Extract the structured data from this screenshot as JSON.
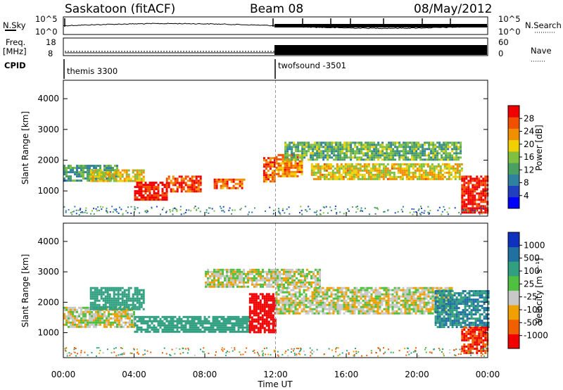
{
  "header": {
    "station": "Saskatoon (fitACF)",
    "beam": "Beam 08",
    "date": "08/May/2012"
  },
  "top_panels": {
    "nsky_label": "N.Sky",
    "nsky_ticks": [
      "10^5",
      "10^0"
    ],
    "nsearch_label": "N.Search",
    "nsearch_ticks": [
      "10^5",
      "10^0"
    ],
    "freq_label": "Freq.",
    "freq_unit": "[MHz]",
    "freq_ticks": [
      "18",
      "8"
    ],
    "nave_label": "Nave",
    "nave_ticks": [
      "60",
      "0"
    ],
    "cpid_label": "CPID",
    "cpid_segments": [
      {
        "name": "themis 3300",
        "start_hour": 0
      },
      {
        "name": "twofsound -3501",
        "start_hour": 12
      }
    ]
  },
  "power_colorbar": {
    "label": "Power [dB]",
    "ticks": [
      "28",
      "24",
      "20",
      "16",
      "12",
      "8",
      "4"
    ],
    "colors": [
      "#0000ff",
      "#2040c0",
      "#3080a0",
      "#4aa060",
      "#80c040",
      "#f0d000",
      "#f09000",
      "#f05000",
      "#f00000"
    ]
  },
  "velocity_colorbar": {
    "label": "Velocity [m s⁻¹]",
    "ticks": [
      "1000",
      "500",
      "100",
      "25",
      "-25",
      "-100",
      "-500",
      "-1000"
    ],
    "colors": [
      "#1030c0",
      "#2070a0",
      "#30a080",
      "#50c040",
      "#c8c8c8",
      "#f0a000",
      "#f06000",
      "#f00000"
    ]
  },
  "x_axis": {
    "label": "Time UT",
    "ticks": [
      "00:00",
      "04:00",
      "08:00",
      "12:00",
      "16:00",
      "20:00",
      "00:00"
    ]
  },
  "y_axis": {
    "label": "Slant Range [km]",
    "ticks": [
      "4000",
      "3000",
      "2000",
      "1000"
    ]
  },
  "chart_data": [
    {
      "type": "heatmap",
      "title": "Power",
      "ylabel": "Slant Range [km]",
      "xlabel": "",
      "x_range_hours": [
        0,
        24
      ],
      "ylim": [
        180,
        4600
      ],
      "value_range_db": [
        0,
        32
      ],
      "bands": [
        {
          "t0": 0,
          "t1": 3,
          "r0": 1350,
          "r1": 1850,
          "value": 12
        },
        {
          "t0": 1.5,
          "t1": 4.5,
          "r0": 1300,
          "r1": 1700,
          "value": 20
        },
        {
          "t0": 4.0,
          "t1": 5.8,
          "r0": 700,
          "r1": 1300,
          "value": 30
        },
        {
          "t0": 5.8,
          "t1": 7.8,
          "r0": 1000,
          "r1": 1500,
          "value": 28
        },
        {
          "t0": 8.5,
          "t1": 10.2,
          "r0": 1100,
          "r1": 1400,
          "value": 26
        },
        {
          "t0": 11.3,
          "t1": 12.0,
          "r0": 1300,
          "r1": 2100,
          "value": 26
        },
        {
          "t0": 12.0,
          "t1": 13.5,
          "r0": 1500,
          "r1": 2200,
          "value": 24
        },
        {
          "t0": 12.5,
          "t1": 22.5,
          "r0": 2000,
          "r1": 2600,
          "value": 14
        },
        {
          "t0": 14.0,
          "t1": 22.5,
          "r0": 1400,
          "r1": 1900,
          "value": 20
        },
        {
          "t0": 22.5,
          "t1": 24.0,
          "r0": 300,
          "r1": 1500,
          "value": 30
        }
      ]
    },
    {
      "type": "heatmap",
      "title": "Velocity",
      "ylabel": "Slant Range [km]",
      "xlabel": "Time UT",
      "x_range_hours": [
        0,
        24
      ],
      "ylim": [
        180,
        4600
      ],
      "value_range_ms": [
        -1000,
        1000
      ],
      "bands": [
        {
          "t0": 0,
          "t1": 4.0,
          "r0": 1200,
          "r1": 1850,
          "value": 0
        },
        {
          "t0": 1.5,
          "t1": 4.5,
          "r0": 1800,
          "r1": 2500,
          "value": 200
        },
        {
          "t0": 4.0,
          "t1": 10.5,
          "r0": 1050,
          "r1": 1550,
          "value": 150
        },
        {
          "t0": 8.0,
          "t1": 14.5,
          "r0": 2500,
          "r1": 3100,
          "value": 0
        },
        {
          "t0": 10.5,
          "t1": 12.0,
          "r0": 1000,
          "r1": 2300,
          "value": -400
        },
        {
          "t0": 12.0,
          "t1": 22.0,
          "r0": 1600,
          "r1": 2500,
          "value": 0
        },
        {
          "t0": 21.0,
          "t1": 24.0,
          "r0": 1200,
          "r1": 2400,
          "value": 300
        },
        {
          "t0": 22.5,
          "t1": 24.0,
          "r0": 300,
          "r1": 1200,
          "value": -300
        }
      ]
    }
  ]
}
